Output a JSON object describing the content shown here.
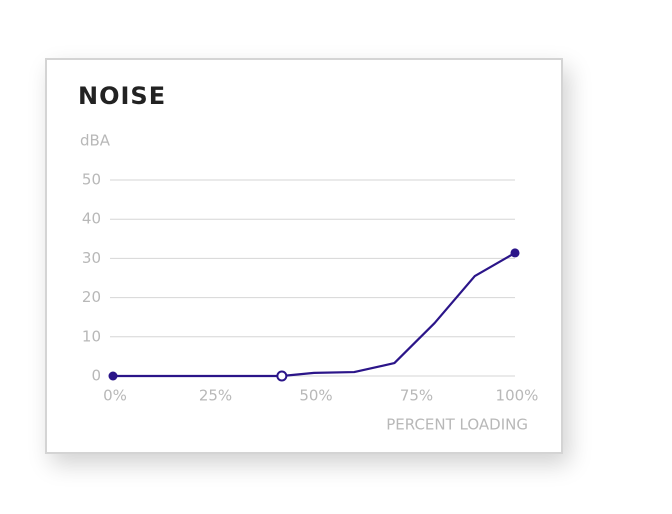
{
  "chart_data": {
    "type": "line",
    "title": "NOISE",
    "y_label": "dBA",
    "x_label": "PERCENT LOADING",
    "x": [
      0,
      42,
      50,
      60,
      70,
      80,
      90,
      100
    ],
    "series": [
      {
        "color": "#2b1589",
        "values": [
          0,
          0,
          0.8,
          1,
          3.3,
          13.5,
          25.5,
          31.4
        ]
      }
    ],
    "markers": {
      "filled": [
        0,
        7
      ],
      "open": [
        1
      ]
    },
    "xlim": [
      0,
      100
    ],
    "xticks": [
      {
        "value": 0,
        "label": "0%"
      },
      {
        "value": 25,
        "label": "25%"
      },
      {
        "value": 50,
        "label": "50%"
      },
      {
        "value": 75,
        "label": "75%"
      },
      {
        "value": 100,
        "label": "100%"
      }
    ],
    "ylim": [
      0,
      50
    ],
    "yticks": [
      0,
      10,
      20,
      30,
      40,
      50
    ],
    "grid": true
  }
}
